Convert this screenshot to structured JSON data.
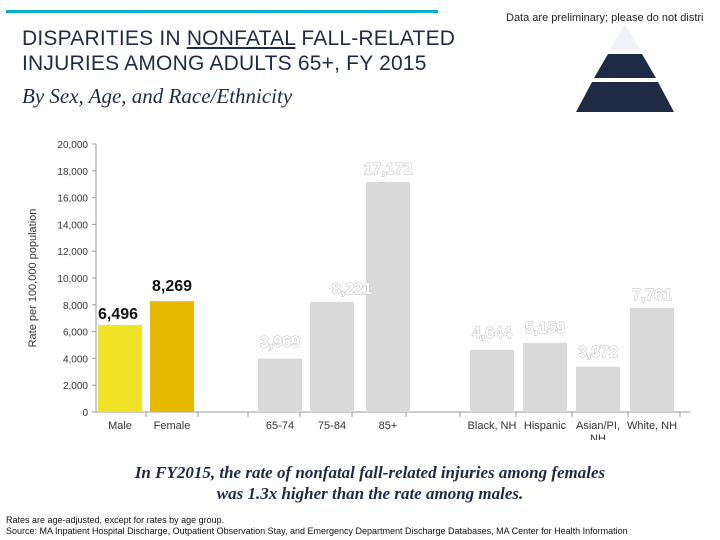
{
  "header": {
    "prelim_note": "Data are preliminary; please do not distri",
    "title_line1_a": "DISPARITIES IN ",
    "title_line1_u": "NONFATAL",
    "title_line1_b": " FALL-RELATED",
    "title_line2": "INJURIES AMONG ADULTS 65+, FY 2015",
    "subtitle": "By Sex, Age, and Race/Ethnicity"
  },
  "colors": {
    "accent_rule": "#00b0c8",
    "pyramid_top": "#ffffff",
    "pyramid_mid": "#1f2a44",
    "pyramid_bottom": "#1f2a44",
    "male_bar": "#f0e226",
    "female_bar": "#e6b800",
    "gray_bar": "#d9d9d9"
  },
  "chart_data": {
    "type": "bar",
    "ylabel": "Rate per 100,000 population",
    "ylim": [
      0,
      20000
    ],
    "yticks": [
      "0",
      "2,000",
      "4,000",
      "6,000",
      "8,000",
      "10,000",
      "12,000",
      "14,000",
      "16,000",
      "18,000",
      "20,000"
    ],
    "groups": [
      "Sex",
      "Age",
      "Race/Ethnicity"
    ],
    "bars": [
      {
        "group": "Sex",
        "category": "Male",
        "value": 6496,
        "label": "6,496",
        "color": "#f0e226",
        "label_style": "dark"
      },
      {
        "group": "Sex",
        "category": "Female",
        "value": 8269,
        "label": "8,269",
        "color": "#e6b800",
        "label_style": "dark"
      },
      {
        "group": "Age",
        "category": "65-74",
        "value": 3969,
        "label": "3,969",
        "color": "#d9d9d9",
        "label_style": "light"
      },
      {
        "group": "Age",
        "category": "75-84",
        "value": 8221,
        "label": "8,221",
        "color": "#d9d9d9",
        "label_style": "light"
      },
      {
        "group": "Age",
        "category": "85+",
        "value": 17172,
        "label": "17,172",
        "color": "#d9d9d9",
        "label_style": "light"
      },
      {
        "group": "Race/Ethnicity",
        "category": "Black, NH",
        "value": 4644,
        "label": "4,644",
        "color": "#d9d9d9",
        "label_style": "light"
      },
      {
        "group": "Race/Ethnicity",
        "category": "Hispanic",
        "value": 5159,
        "label": "5,159",
        "color": "#d9d9d9",
        "label_style": "light"
      },
      {
        "group": "Race/Ethnicity",
        "category": "Asian/PI, NH",
        "value": 3372,
        "label": "3,372",
        "color": "#d9d9d9",
        "label_style": "light"
      },
      {
        "group": "Race/Ethnicity",
        "category": "White, NH",
        "value": 7761,
        "label": "7,761",
        "color": "#d9d9d9",
        "label_style": "light"
      }
    ]
  },
  "callout": {
    "line1": "In FY2015, the rate of nonfatal fall-related injuries among females",
    "line2": "was 1.3x higher than the rate among males."
  },
  "footnotes": {
    "line1": "Rates are age-adjusted, except for rates by age group.",
    "line2": "Source: MA Inpatient Hospital Discharge, Outpatient Observation Stay, and Emergency Department Discharge Databases, MA Center for Health Information"
  }
}
